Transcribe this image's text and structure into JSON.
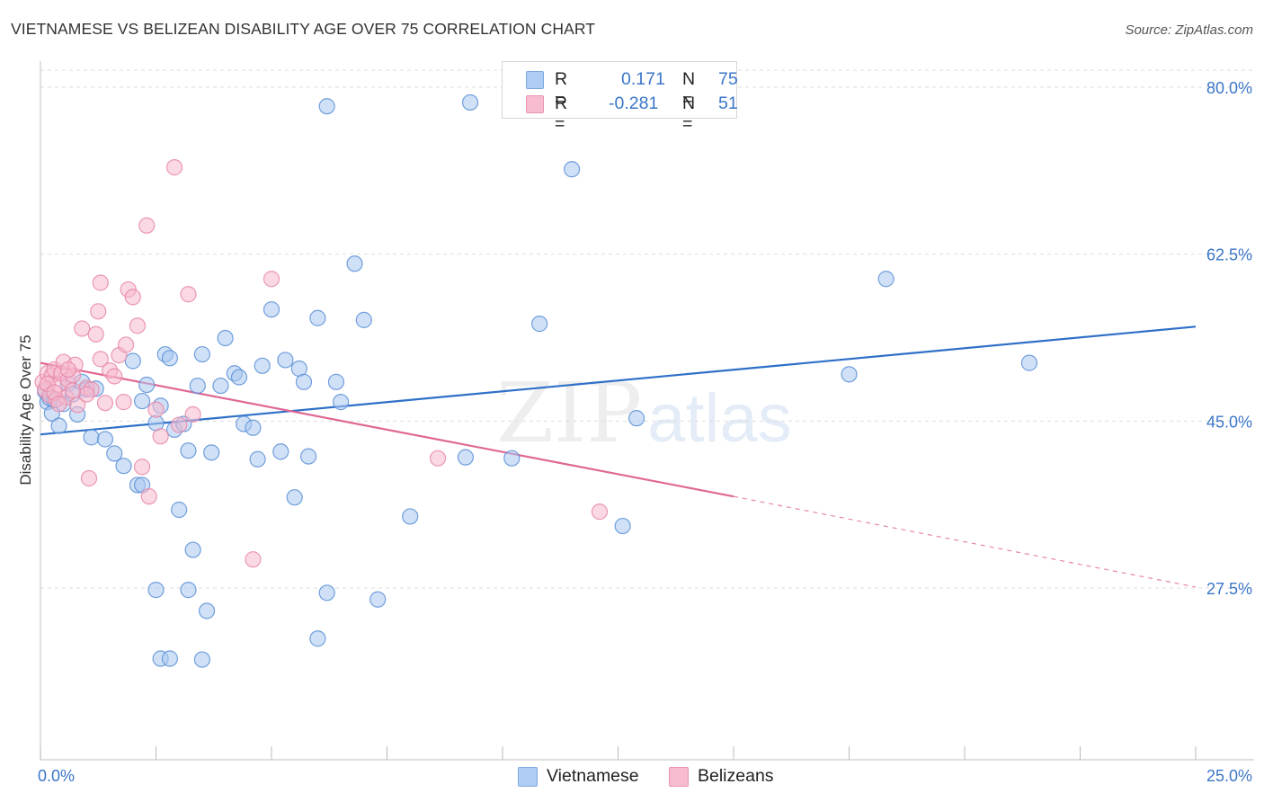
{
  "header": {
    "title": "VIETNAMESE VS BELIZEAN DISABILITY AGE OVER 75 CORRELATION CHART",
    "source": "Source: ZipAtlas.com"
  },
  "watermark": {
    "zip": "ZIP",
    "atlas": "atlas"
  },
  "legend": {
    "rows": [
      {
        "r_label": "R =",
        "r_value": "0.171",
        "n_label": "N =",
        "n_value": "75",
        "color": "#aeccf4"
      },
      {
        "r_label": "R =",
        "r_value": "-0.281",
        "n_label": "N =",
        "n_value": "51",
        "color": "#f7bcd0"
      }
    ]
  },
  "bottom_legend": {
    "vietnamese": "Vietnamese",
    "belizeans": "Belizeans"
  },
  "colors": {
    "blue_fill": "#a9c8f0",
    "blue_stroke": "#5b8fd6",
    "blue_line": "#2f70c8",
    "pink_fill": "#f6b9cd",
    "pink_stroke": "#e887a8",
    "pink_line": "#e06894",
    "axis_text": "#3b76c8",
    "grid": "#dddddd"
  },
  "chart_data": {
    "type": "scatter",
    "title": "VIETNAMESE VS BELIZEAN DISABILITY AGE OVER 75 CORRELATION CHART",
    "xlabel": "",
    "ylabel": "Disability Age Over 75",
    "xlim": [
      0,
      25
    ],
    "ylim": [
      10,
      82
    ],
    "x_tick_labels": [
      "0.0%",
      "25.0%"
    ],
    "y_ticks": [
      27.5,
      45.0,
      62.5,
      80.0
    ],
    "y_tick_labels": [
      "27.5%",
      "45.0%",
      "62.5%",
      "80.0%"
    ],
    "grid": true,
    "series": [
      {
        "name": "Vietnamese",
        "R": 0.171,
        "N": 75,
        "trend": {
          "x": [
            0,
            25
          ],
          "y": [
            43.6,
            54.9
          ],
          "dashed_from": null
        },
        "points": [
          [
            0.1,
            48.1
          ],
          [
            0.15,
            47.0
          ],
          [
            0.2,
            47.4
          ],
          [
            0.25,
            45.8
          ],
          [
            0.3,
            47.2
          ],
          [
            0.4,
            44.5
          ],
          [
            0.5,
            46.8
          ],
          [
            0.6,
            48.9
          ],
          [
            0.7,
            47.8
          ],
          [
            0.8,
            45.7
          ],
          [
            0.9,
            49.1
          ],
          [
            1.0,
            48.3
          ],
          [
            1.1,
            43.3
          ],
          [
            1.2,
            48.4
          ],
          [
            1.4,
            43.1
          ],
          [
            1.6,
            41.6
          ],
          [
            1.8,
            40.3
          ],
          [
            2.0,
            51.3
          ],
          [
            2.1,
            38.3
          ],
          [
            2.2,
            47.1
          ],
          [
            2.3,
            48.8
          ],
          [
            2.5,
            44.8
          ],
          [
            2.6,
            46.6
          ],
          [
            2.7,
            52.0
          ],
          [
            2.8,
            51.6
          ],
          [
            2.9,
            44.1
          ],
          [
            3.0,
            35.7
          ],
          [
            3.1,
            44.7
          ],
          [
            3.2,
            41.9
          ],
          [
            3.3,
            31.5
          ],
          [
            3.4,
            48.7
          ],
          [
            3.5,
            52.0
          ],
          [
            3.7,
            41.7
          ],
          [
            3.9,
            48.7
          ],
          [
            4.0,
            53.7
          ],
          [
            4.2,
            50.0
          ],
          [
            4.3,
            49.6
          ],
          [
            4.4,
            44.7
          ],
          [
            4.6,
            44.3
          ],
          [
            4.7,
            41.0
          ],
          [
            4.8,
            50.8
          ],
          [
            5.0,
            56.7
          ],
          [
            5.2,
            41.8
          ],
          [
            5.3,
            51.4
          ],
          [
            5.5,
            37.0
          ],
          [
            5.6,
            50.5
          ],
          [
            5.7,
            49.1
          ],
          [
            5.8,
            41.3
          ],
          [
            6.0,
            55.8
          ],
          [
            6.4,
            49.1
          ],
          [
            6.5,
            47.0
          ],
          [
            6.8,
            61.5
          ],
          [
            7.0,
            55.6
          ],
          [
            7.3,
            26.3
          ],
          [
            8.0,
            35.0
          ],
          [
            9.2,
            41.2
          ],
          [
            9.3,
            78.4
          ],
          [
            10.2,
            41.1
          ],
          [
            10.8,
            55.2
          ],
          [
            11.5,
            71.4
          ],
          [
            12.6,
            34.0
          ],
          [
            12.9,
            45.3
          ],
          [
            17.5,
            49.9
          ],
          [
            18.3,
            59.9
          ],
          [
            21.4,
            51.1
          ],
          [
            6.2,
            27.0
          ],
          [
            6.2,
            78.0
          ],
          [
            2.5,
            27.3
          ],
          [
            3.2,
            27.3
          ],
          [
            2.6,
            20.1
          ],
          [
            3.5,
            20.0
          ],
          [
            2.2,
            38.3
          ],
          [
            3.6,
            25.1
          ],
          [
            6.0,
            22.2
          ],
          [
            2.8,
            20.1
          ]
        ]
      },
      {
        "name": "Belizeans",
        "R": -0.281,
        "N": 51,
        "trend": {
          "x": [
            0,
            15
          ],
          "y": [
            51.1,
            37.1
          ],
          "dashed_to": [
            25,
            27.6
          ]
        },
        "points": [
          [
            0.05,
            49.1
          ],
          [
            0.1,
            48.3
          ],
          [
            0.15,
            50.0
          ],
          [
            0.2,
            47.7
          ],
          [
            0.25,
            49.8
          ],
          [
            0.3,
            50.4
          ],
          [
            0.35,
            47.3
          ],
          [
            0.4,
            48.8
          ],
          [
            0.45,
            50.0
          ],
          [
            0.5,
            51.2
          ],
          [
            0.55,
            47.5
          ],
          [
            0.6,
            49.3
          ],
          [
            0.7,
            49.8
          ],
          [
            0.75,
            50.9
          ],
          [
            0.8,
            46.7
          ],
          [
            0.9,
            54.7
          ],
          [
            1.0,
            48.5
          ],
          [
            1.05,
            39.0
          ],
          [
            1.1,
            48.3
          ],
          [
            1.2,
            54.1
          ],
          [
            1.25,
            56.5
          ],
          [
            1.3,
            59.5
          ],
          [
            1.4,
            46.9
          ],
          [
            1.5,
            50.3
          ],
          [
            1.6,
            49.7
          ],
          [
            1.7,
            51.9
          ],
          [
            1.8,
            47.0
          ],
          [
            1.85,
            53.0
          ],
          [
            1.9,
            58.8
          ],
          [
            2.0,
            58.0
          ],
          [
            2.1,
            55.0
          ],
          [
            2.2,
            40.2
          ],
          [
            2.3,
            65.5
          ],
          [
            2.35,
            37.1
          ],
          [
            2.5,
            46.2
          ],
          [
            2.6,
            43.4
          ],
          [
            2.9,
            71.6
          ],
          [
            3.0,
            44.6
          ],
          [
            3.2,
            58.3
          ],
          [
            3.3,
            45.7
          ],
          [
            4.6,
            30.5
          ],
          [
            5.0,
            59.9
          ],
          [
            8.6,
            41.1
          ],
          [
            12.1,
            35.5
          ],
          [
            0.15,
            48.9
          ],
          [
            0.3,
            48.0
          ],
          [
            0.6,
            50.4
          ],
          [
            1.0,
            47.8
          ],
          [
            1.3,
            51.5
          ],
          [
            0.4,
            46.8
          ],
          [
            0.7,
            48.2
          ]
        ]
      }
    ]
  }
}
